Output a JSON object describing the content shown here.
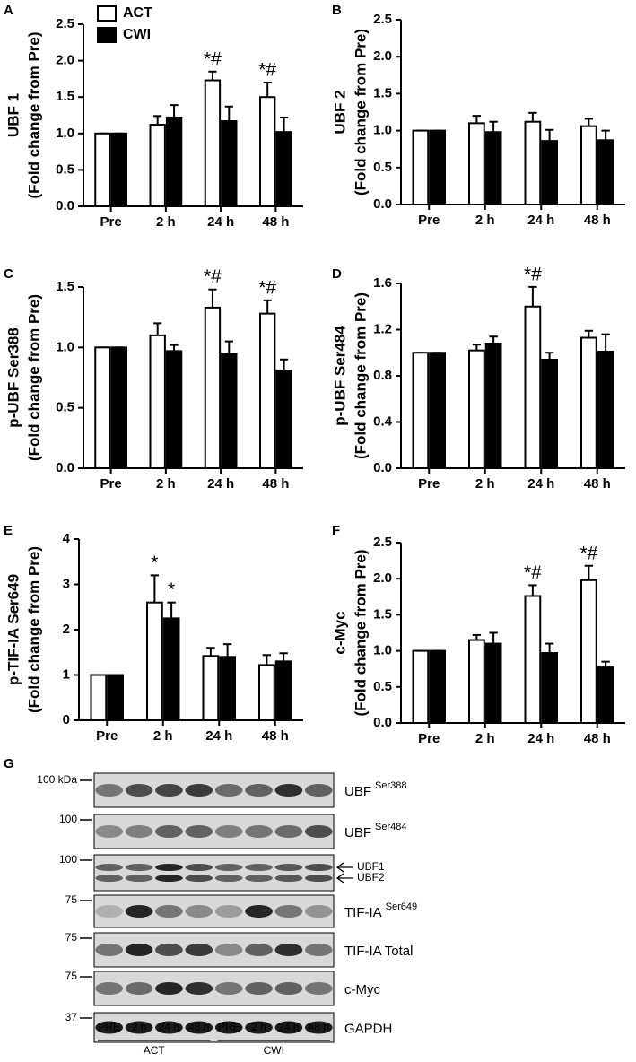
{
  "chart_data": [
    {
      "type": "bar",
      "panel": "A",
      "ylabel": "UBF 1",
      "ylabel2": "(Fold change from Pre)",
      "legend": true,
      "categories": [
        "Pre",
        "2 h",
        "24 h",
        "48 h"
      ],
      "series": [
        {
          "name": "ACT",
          "color": "#ffffff",
          "values": [
            1.0,
            1.12,
            1.73,
            1.5
          ],
          "errors": [
            0,
            0.12,
            0.12,
            0.2
          ],
          "labels": [
            null,
            null,
            "*#",
            "*#"
          ]
        },
        {
          "name": "CWI",
          "color": "#000000",
          "values": [
            1.0,
            1.22,
            1.17,
            1.02
          ],
          "errors": [
            0,
            0.17,
            0.2,
            0.2
          ]
        }
      ],
      "ylim": [
        0,
        2.5
      ],
      "yticks": [
        {
          "value": 0,
          "label": "0.0"
        },
        0.5,
        {
          "value": 1,
          "label": "1.0"
        },
        1.5,
        {
          "value": 2,
          "label": "2.0"
        },
        2.5
      ]
    },
    {
      "type": "bar",
      "panel": "B",
      "ylabel": "UBF 2",
      "ylabel2": "(Fold change from Pre)",
      "categories": [
        "Pre",
        "2 h",
        "24 h",
        "48 h"
      ],
      "series": [
        {
          "color": "#ffffff",
          "values": [
            1.0,
            1.1,
            1.12,
            1.06
          ],
          "errors": [
            0,
            0.1,
            0.12,
            0.1
          ]
        },
        {
          "color": "#000000",
          "values": [
            1.0,
            0.98,
            0.86,
            0.87
          ],
          "errors": [
            0,
            0.14,
            0.15,
            0.13
          ]
        }
      ],
      "ylim": [
        0,
        2.5
      ],
      "yticks": [
        {
          "value": 0,
          "label": "0.0"
        },
        0.5,
        {
          "value": 1,
          "label": "1.0"
        },
        1.5,
        {
          "value": 2,
          "label": "2.0"
        },
        2.5
      ]
    },
    {
      "type": "bar",
      "panel": "C",
      "ylabel": "p-UBF Ser388",
      "ylabel2": "(Fold change from Pre)",
      "categories": [
        "Pre",
        "2 h",
        "24 h",
        "48 h"
      ],
      "series": [
        {
          "color": "#ffffff",
          "values": [
            1.0,
            1.1,
            1.33,
            1.28
          ],
          "errors": [
            0,
            0.1,
            0.15,
            0.11
          ],
          "labels": [
            null,
            null,
            "*#",
            "*#"
          ]
        },
        {
          "color": "#000000",
          "values": [
            1.0,
            0.97,
            0.95,
            0.81
          ],
          "errors": [
            0,
            0.05,
            0.1,
            0.09
          ]
        }
      ],
      "ylim": [
        0,
        1.5
      ],
      "yticks": [
        {
          "value": 0,
          "label": "0.0"
        },
        0.5,
        {
          "value": 1,
          "label": "1.0"
        },
        1.5
      ]
    },
    {
      "type": "bar",
      "panel": "D",
      "ylabel": "p-UBF Ser484",
      "ylabel2": "(Fold change from Pre)",
      "categories": [
        "Pre",
        "2 h",
        "24 h",
        "48 h"
      ],
      "series": [
        {
          "color": "#ffffff",
          "values": [
            1.0,
            1.02,
            1.4,
            1.13
          ],
          "errors": [
            0,
            0.05,
            0.17,
            0.06
          ],
          "labels": [
            null,
            null,
            "*#",
            null
          ]
        },
        {
          "color": "#000000",
          "values": [
            1.0,
            1.08,
            0.94,
            1.01
          ],
          "errors": [
            0,
            0.06,
            0.06,
            0.15
          ]
        }
      ],
      "ylim": [
        0,
        1.6
      ],
      "yticks": [
        {
          "value": 0,
          "label": "0.0"
        },
        0.4,
        0.8,
        1.2,
        1.6
      ]
    },
    {
      "type": "bar",
      "panel": "E",
      "ylabel": "p-TIF-IA Ser649",
      "ylabel2": "(Fold change from Pre)",
      "categories": [
        "Pre",
        "2 h",
        "24 h",
        "48 h"
      ],
      "series": [
        {
          "color": "#ffffff",
          "values": [
            1.0,
            2.6,
            1.42,
            1.22
          ],
          "errors": [
            0,
            0.6,
            0.18,
            0.22
          ],
          "labels": [
            null,
            "*",
            null,
            null
          ]
        },
        {
          "color": "#000000",
          "values": [
            1.0,
            2.25,
            1.4,
            1.3
          ],
          "errors": [
            0,
            0.35,
            0.28,
            0.18
          ],
          "labels": [
            null,
            "*",
            null,
            null
          ]
        }
      ],
      "ylim": [
        0,
        4
      ],
      "yticks": [
        0,
        1,
        2,
        3,
        4
      ]
    },
    {
      "type": "bar",
      "panel": "F",
      "ylabel": "c-Myc",
      "ylabel2": "(Fold change from Pre)",
      "categories": [
        "Pre",
        "2 h",
        "24 h",
        "48 h"
      ],
      "series": [
        {
          "color": "#ffffff",
          "values": [
            1.0,
            1.15,
            1.76,
            1.98
          ],
          "errors": [
            0,
            0.07,
            0.15,
            0.2
          ],
          "labels": [
            null,
            null,
            "*#",
            "*#"
          ]
        },
        {
          "color": "#000000",
          "values": [
            1.0,
            1.1,
            0.97,
            0.77
          ],
          "errors": [
            0,
            0.15,
            0.13,
            0.08
          ]
        }
      ],
      "ylim": [
        0,
        2.5
      ],
      "yticks": [
        {
          "value": 0,
          "label": "0.0"
        },
        0.5,
        {
          "value": 1,
          "label": "1.0"
        },
        1.5,
        {
          "value": 2,
          "label": "2.0"
        },
        2.5
      ]
    }
  ],
  "blot": {
    "panel": "G",
    "rows": [
      {
        "marker": "100 kDa",
        "label": "UBF",
        "sup": "Ser388"
      },
      {
        "marker": "100",
        "label": "UBF",
        "sup": "Ser484"
      },
      {
        "marker": "100",
        "arrows": [
          "UBF1",
          "UBF2"
        ]
      },
      {
        "marker": "75",
        "label": "TIF-IA",
        "sup": "Ser649"
      },
      {
        "marker": "75",
        "label": "TIF-IA Total"
      },
      {
        "marker": "75",
        "label": "c-Myc"
      },
      {
        "marker": "37",
        "label": "GAPDH"
      }
    ],
    "lanes": [
      "PRE",
      "2 h",
      "24 h",
      "48 h",
      "PRE",
      "2 h",
      "24 h",
      "48 h"
    ],
    "groups": [
      "ACT",
      "CWI"
    ]
  }
}
